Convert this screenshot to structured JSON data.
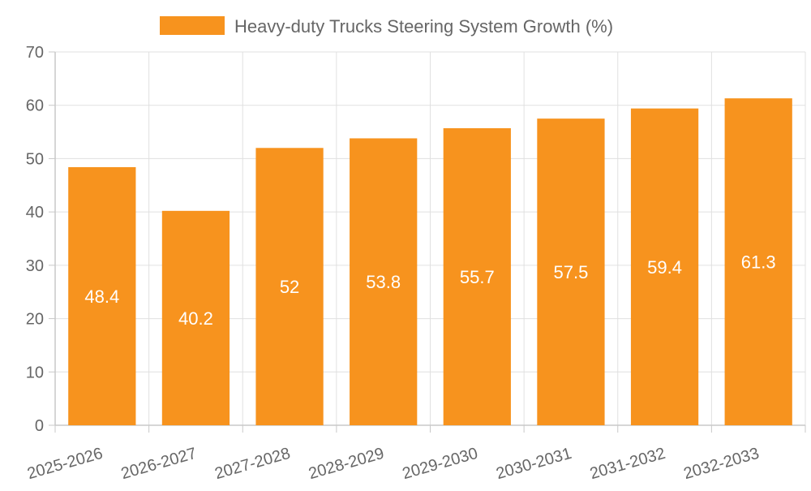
{
  "chart_data": {
    "type": "bar",
    "categories": [
      "2025-2026",
      "2026-2027",
      "2027-2028",
      "2028-2029",
      "2029-2030",
      "2030-2031",
      "2031-2032",
      "2032-2033"
    ],
    "series": [
      {
        "name": "Heavy-duty Trucks Steering System Growth (%)",
        "values": [
          48.4,
          40.2,
          52,
          53.8,
          55.7,
          57.5,
          59.4,
          61.3
        ],
        "color": "#f7931e"
      }
    ],
    "data_labels": [
      "48.4",
      "40.2",
      "52",
      "53.8",
      "55.7",
      "57.5",
      "59.4",
      "61.3"
    ],
    "y_ticks": [
      0,
      10,
      20,
      30,
      40,
      50,
      60,
      70
    ],
    "ylim": [
      0,
      70
    ],
    "grid": true,
    "legend_position": "top-center",
    "title": "",
    "xlabel": "",
    "ylabel": ""
  }
}
